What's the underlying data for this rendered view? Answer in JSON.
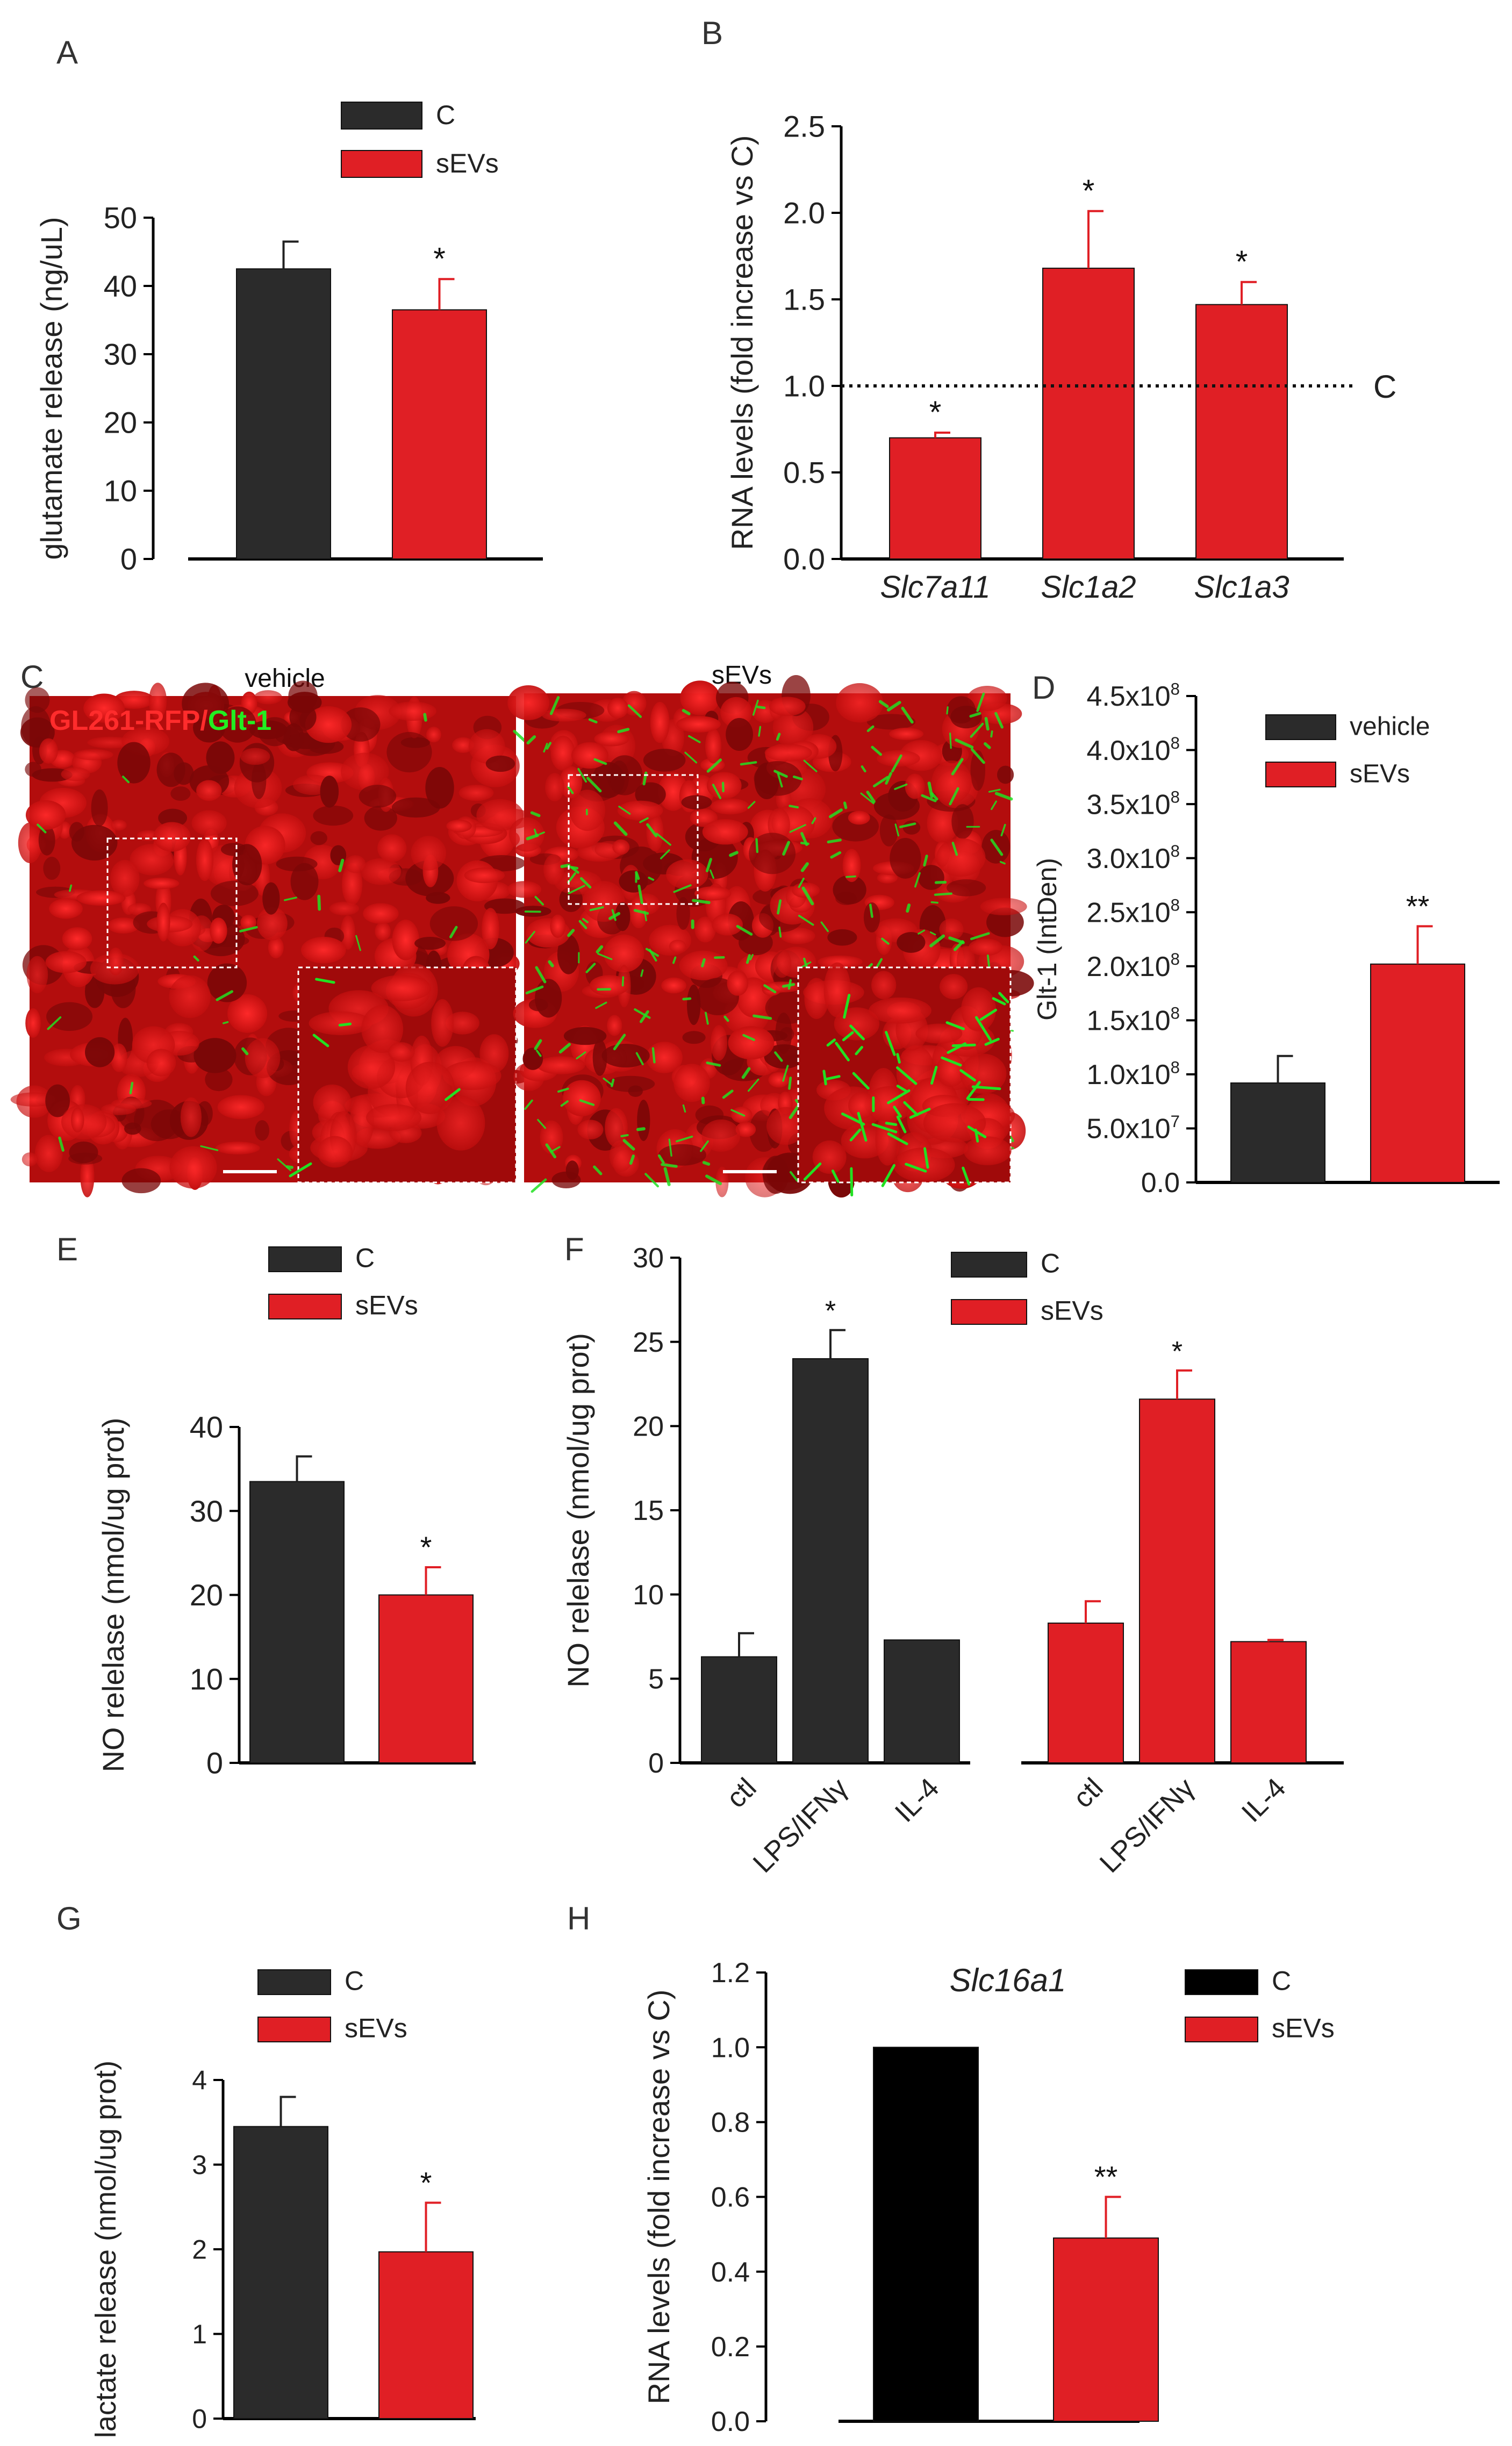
{
  "colors": {
    "control": "#2b2b2b",
    "control_black": "#000000",
    "sevs": "#e01f25",
    "axis": "#000000",
    "micro_bg": "#b30d0d",
    "micro_green": "#22e022"
  },
  "panels": {
    "A": {
      "label": "A"
    },
    "B": {
      "label": "B"
    },
    "C": {
      "label": "C",
      "left_title": "vehicle",
      "right_title": "sEVs",
      "stain_red": "GL261-RFP/",
      "stain_green": "Glt-1"
    },
    "D": {
      "label": "D"
    },
    "E": {
      "label": "E"
    },
    "F": {
      "label": "F"
    },
    "G": {
      "label": "G"
    },
    "H": {
      "label": "H"
    }
  },
  "chart_data": [
    {
      "id": "A",
      "type": "bar",
      "ylabel": "glutamate release (ng/uL)",
      "xlabel": "",
      "ylim": [
        0,
        50
      ],
      "yticks": [
        "0",
        "10",
        "20",
        "30",
        "40",
        "50"
      ],
      "legend": {
        "position": "top-right",
        "entries": [
          "C",
          "sEVs"
        ]
      },
      "bars": [
        {
          "series": "C",
          "value": 42.5,
          "error": 4.0,
          "annotation": ""
        },
        {
          "series": "sEVs",
          "value": 36.5,
          "error": 4.5,
          "annotation": "*"
        }
      ]
    },
    {
      "id": "B",
      "type": "bar",
      "ylabel": "RNA levels (fold increase vs C)",
      "ylim": [
        0,
        2.5
      ],
      "yticks": [
        "0.0",
        "0.5",
        "1.0",
        "1.5",
        "2.0",
        "2.5"
      ],
      "categories": [
        "Slc7a11",
        "Slc1a2",
        "Slc1a3"
      ],
      "bars": [
        {
          "series": "sEVs",
          "value": 0.7,
          "error": 0.03,
          "annotation": "*"
        },
        {
          "series": "sEVs",
          "value": 1.68,
          "error": 0.33,
          "annotation": "*"
        },
        {
          "series": "sEVs",
          "value": 1.47,
          "error": 0.13,
          "annotation": "*"
        }
      ],
      "reference_line": {
        "value": 1.0,
        "label": "C"
      }
    },
    {
      "id": "D",
      "type": "bar",
      "ylabel": "Glt-1 (IntDen)",
      "ylim": [
        0,
        450000000
      ],
      "yticks": [
        "0.0",
        "5.0x10^7",
        "1.0x10^8",
        "1.5x10^8",
        "2.0x10^8",
        "2.5x10^8",
        "3.0x10^8",
        "3.5x10^8",
        "4.0x10^8",
        "4.5x10^8"
      ],
      "legend": {
        "position": "top-right",
        "entries": [
          "vehicle",
          "sEVs"
        ]
      },
      "bars": [
        {
          "series": "vehicle",
          "value": 92000000,
          "error": 25000000,
          "annotation": ""
        },
        {
          "series": "sEVs",
          "value": 202000000,
          "error": 35000000,
          "annotation": "**"
        }
      ]
    },
    {
      "id": "E",
      "type": "bar",
      "ylabel": "NO relelase (nmol/ug prot)",
      "ylim": [
        0,
        40
      ],
      "yticks": [
        "0",
        "10",
        "20",
        "30",
        "40"
      ],
      "legend": {
        "position": "top-right",
        "entries": [
          "C",
          "sEVs"
        ]
      },
      "bars": [
        {
          "series": "C",
          "value": 33.5,
          "error": 3.0,
          "annotation": ""
        },
        {
          "series": "sEVs",
          "value": 20.0,
          "error": 3.3,
          "annotation": "*"
        }
      ]
    },
    {
      "id": "F",
      "type": "bar",
      "ylabel": "NO relelase (nmol/ug prot)",
      "ylim": [
        0,
        30
      ],
      "yticks": [
        "0",
        "5",
        "10",
        "15",
        "20",
        "25",
        "30"
      ],
      "categories": [
        "ctl",
        "LPS/IFNγ",
        "IL-4"
      ],
      "legend": {
        "position": "top-right",
        "entries": [
          "C",
          "sEVs"
        ]
      },
      "series": [
        {
          "name": "C",
          "values": [
            6.3,
            24.0,
            7.3
          ],
          "errors": [
            1.4,
            1.7,
            0.0
          ],
          "annotations": [
            "",
            "*",
            ""
          ]
        },
        {
          "name": "sEVs",
          "values": [
            8.3,
            21.6,
            7.2
          ],
          "errors": [
            1.3,
            1.7,
            0.1
          ],
          "annotations": [
            "",
            "*",
            ""
          ]
        }
      ]
    },
    {
      "id": "G",
      "type": "bar",
      "ylabel": "lactate release (nmol/ug prot)",
      "ylim": [
        0,
        4
      ],
      "yticks": [
        "0",
        "1",
        "2",
        "3",
        "4"
      ],
      "legend": {
        "position": "top-right",
        "entries": [
          "C",
          "sEVs"
        ]
      },
      "bars": [
        {
          "series": "C",
          "value": 3.45,
          "error": 0.35,
          "annotation": ""
        },
        {
          "series": "sEVs",
          "value": 1.97,
          "error": 0.58,
          "annotation": "*"
        }
      ]
    },
    {
      "id": "H",
      "type": "bar",
      "title": "Slc16a1",
      "ylabel": "RNA levels (fold increase vs C)",
      "ylim": [
        0,
        1.2
      ],
      "yticks": [
        "0.0",
        "0.2",
        "0.4",
        "0.6",
        "0.8",
        "1.0",
        "1.2"
      ],
      "legend": {
        "position": "top-right",
        "entries": [
          "C",
          "sEVs"
        ]
      },
      "bars": [
        {
          "series": "C",
          "value": 1.0,
          "error": 0.0,
          "annotation": ""
        },
        {
          "series": "sEVs",
          "value": 0.49,
          "error": 0.11,
          "annotation": "**"
        }
      ]
    }
  ]
}
